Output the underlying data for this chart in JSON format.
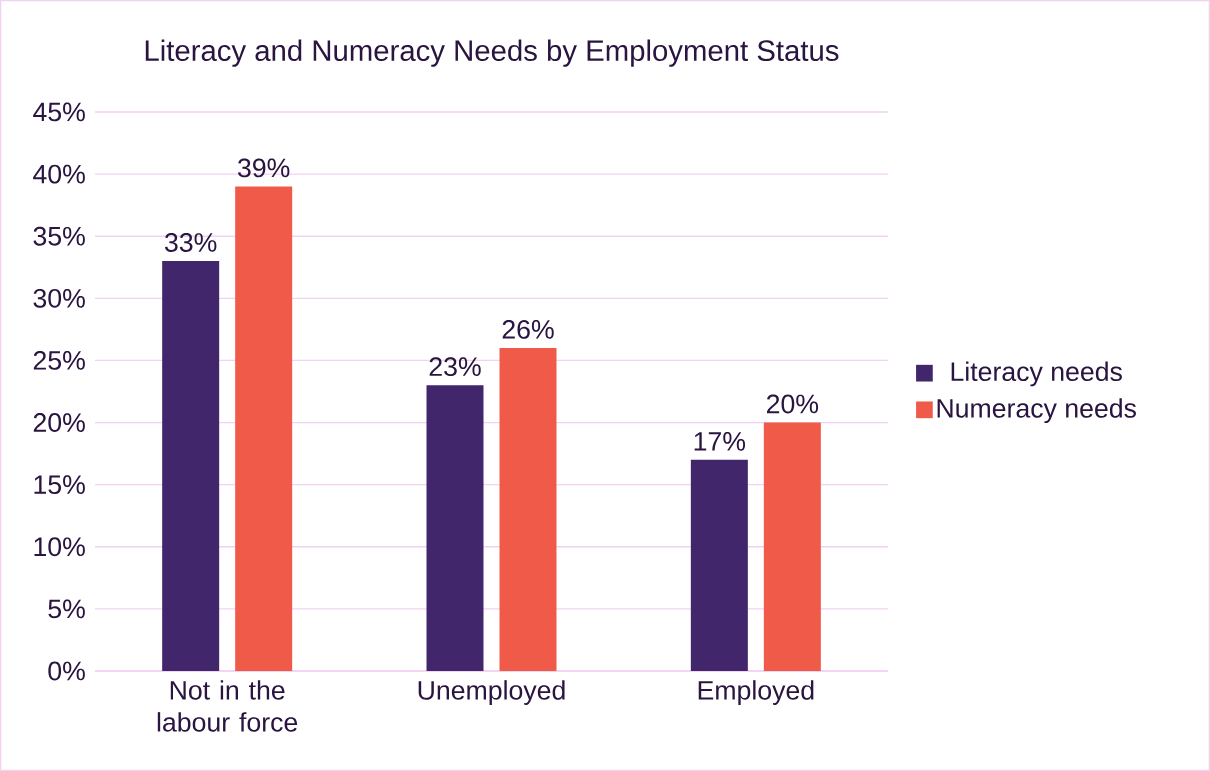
{
  "chart_data": {
    "type": "bar",
    "title": "Literacy and Numeracy Needs by Employment Status",
    "categories": [
      "Not in the labour force",
      "Unemployed",
      "Employed"
    ],
    "series": [
      {
        "name": "Literacy needs",
        "color": "#41266b",
        "values": [
          33,
          23,
          17
        ],
        "value_labels": [
          "33%",
          "23%",
          "17%"
        ]
      },
      {
        "name": "Numeracy needs",
        "color": "#f05a49",
        "values": [
          39,
          26,
          20
        ],
        "value_labels": [
          "39%",
          "26%",
          "20%"
        ]
      }
    ],
    "ylim": [
      0,
      45
    ],
    "yticks": [
      {
        "value": 0,
        "label": "0%"
      },
      {
        "value": 5,
        "label": "5%"
      },
      {
        "value": 10,
        "label": "10%"
      },
      {
        "value": 15,
        "label": "15%"
      },
      {
        "value": 20,
        "label": "20%"
      },
      {
        "value": 25,
        "label": "25%"
      },
      {
        "value": 30,
        "label": "30%"
      },
      {
        "value": 35,
        "label": "35%"
      },
      {
        "value": 40,
        "label": "40%"
      },
      {
        "value": 45,
        "label": "45%"
      }
    ],
    "grid": "y",
    "legend": "right"
  }
}
